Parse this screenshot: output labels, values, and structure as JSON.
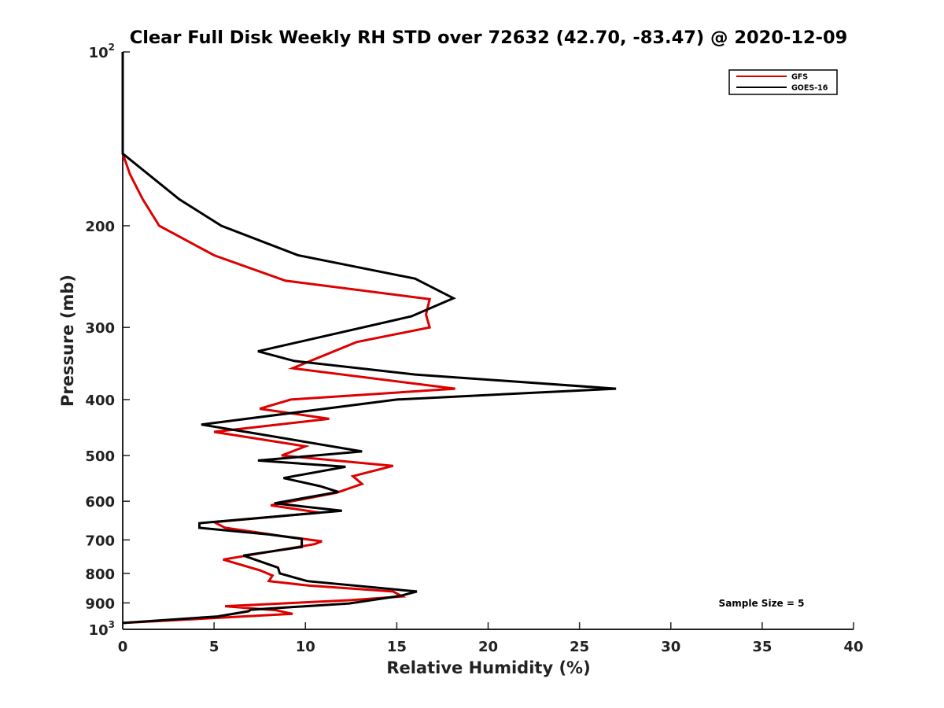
{
  "chart_data": {
    "type": "line",
    "title": "Clear Full Disk Weekly RH STD over 72632 (42.70, -83.47) @ 2020-12-09",
    "xlabel": "Relative Humidity (%)",
    "ylabel": "Pressure (mb)",
    "xlim": [
      0,
      40
    ],
    "ylim": [
      100,
      1000
    ],
    "y_scale": "log",
    "y_reversed": true,
    "x_ticks": [
      0,
      5,
      10,
      15,
      20,
      25,
      30,
      35,
      40
    ],
    "x_tick_labels": [
      "0",
      "5",
      "10",
      "15",
      "20",
      "25",
      "30",
      "35",
      "40"
    ],
    "y_ticks": [
      100,
      200,
      300,
      400,
      500,
      600,
      700,
      800,
      900,
      1000
    ],
    "y_tick_labels": [
      {
        "base": "10",
        "exp": "2"
      },
      {
        "base": "200"
      },
      {
        "base": "300"
      },
      {
        "base": "400"
      },
      {
        "base": "500"
      },
      {
        "base": "600"
      },
      {
        "base": "700"
      },
      {
        "base": "800"
      },
      {
        "base": "900"
      },
      {
        "base": "10",
        "exp": "3"
      }
    ],
    "grid": false,
    "legend_position": "top-right",
    "annotation": "Sample Size = 5",
    "series": [
      {
        "name": "GFS",
        "color": "#dd0000",
        "points": [
          [
            0,
            100
          ],
          [
            0,
            150
          ],
          [
            0.4,
            163
          ],
          [
            1.1,
            180
          ],
          [
            2.0,
            200
          ],
          [
            5.0,
            225
          ],
          [
            8.9,
            249
          ],
          [
            16.8,
            268
          ],
          [
            16.6,
            285
          ],
          [
            16.8,
            300
          ],
          [
            12.8,
            318
          ],
          [
            9.3,
            353
          ],
          [
            18.2,
            383
          ],
          [
            9.2,
            400
          ],
          [
            7.5,
            415
          ],
          [
            11.3,
            432
          ],
          [
            5.0,
            455
          ],
          [
            10.0,
            482
          ],
          [
            8.7,
            500
          ],
          [
            14.8,
            521
          ],
          [
            12.6,
            543
          ],
          [
            13.1,
            560
          ],
          [
            11.7,
            580
          ],
          [
            8.1,
            610
          ],
          [
            10.8,
            628
          ],
          [
            5.0,
            652
          ],
          [
            5.6,
            667
          ],
          [
            8.8,
            690
          ],
          [
            10.9,
            704
          ],
          [
            10.5,
            712
          ],
          [
            5.5,
            757
          ],
          [
            7.5,
            790
          ],
          [
            8.2,
            807
          ],
          [
            8.0,
            825
          ],
          [
            10.2,
            840
          ],
          [
            14.8,
            860
          ],
          [
            15.3,
            877
          ],
          [
            12.5,
            890
          ],
          [
            5.6,
            912
          ],
          [
            8.4,
            927
          ],
          [
            9.3,
            940
          ],
          [
            0,
            975
          ]
        ]
      },
      {
        "name": "GOES-16",
        "color": "#000000",
        "points": [
          [
            0,
            100
          ],
          [
            0,
            150
          ],
          [
            3.1,
            180
          ],
          [
            5.4,
            200
          ],
          [
            9.6,
            225
          ],
          [
            16.0,
            247
          ],
          [
            18.1,
            267
          ],
          [
            15.8,
            287
          ],
          [
            7.4,
            330
          ],
          [
            9.4,
            343
          ],
          [
            16.0,
            362
          ],
          [
            27.0,
            383
          ],
          [
            15.0,
            400
          ],
          [
            4.3,
            442
          ],
          [
            7.3,
            458
          ],
          [
            13.1,
            492
          ],
          [
            7.4,
            510
          ],
          [
            12.2,
            523
          ],
          [
            8.8,
            547
          ],
          [
            10.8,
            565
          ],
          [
            11.8,
            578
          ],
          [
            8.3,
            605
          ],
          [
            12.0,
            623
          ],
          [
            4.2,
            655
          ],
          [
            4.2,
            667
          ],
          [
            8.0,
            685
          ],
          [
            9.8,
            697
          ],
          [
            9.8,
            720
          ],
          [
            6.6,
            745
          ],
          [
            8.5,
            782
          ],
          [
            8.6,
            800
          ],
          [
            10.1,
            825
          ],
          [
            16.1,
            860
          ],
          [
            15.2,
            875
          ],
          [
            12.4,
            902
          ],
          [
            7.0,
            925
          ],
          [
            6.9,
            930
          ],
          [
            5.2,
            950
          ],
          [
            0,
            975
          ]
        ]
      }
    ]
  }
}
